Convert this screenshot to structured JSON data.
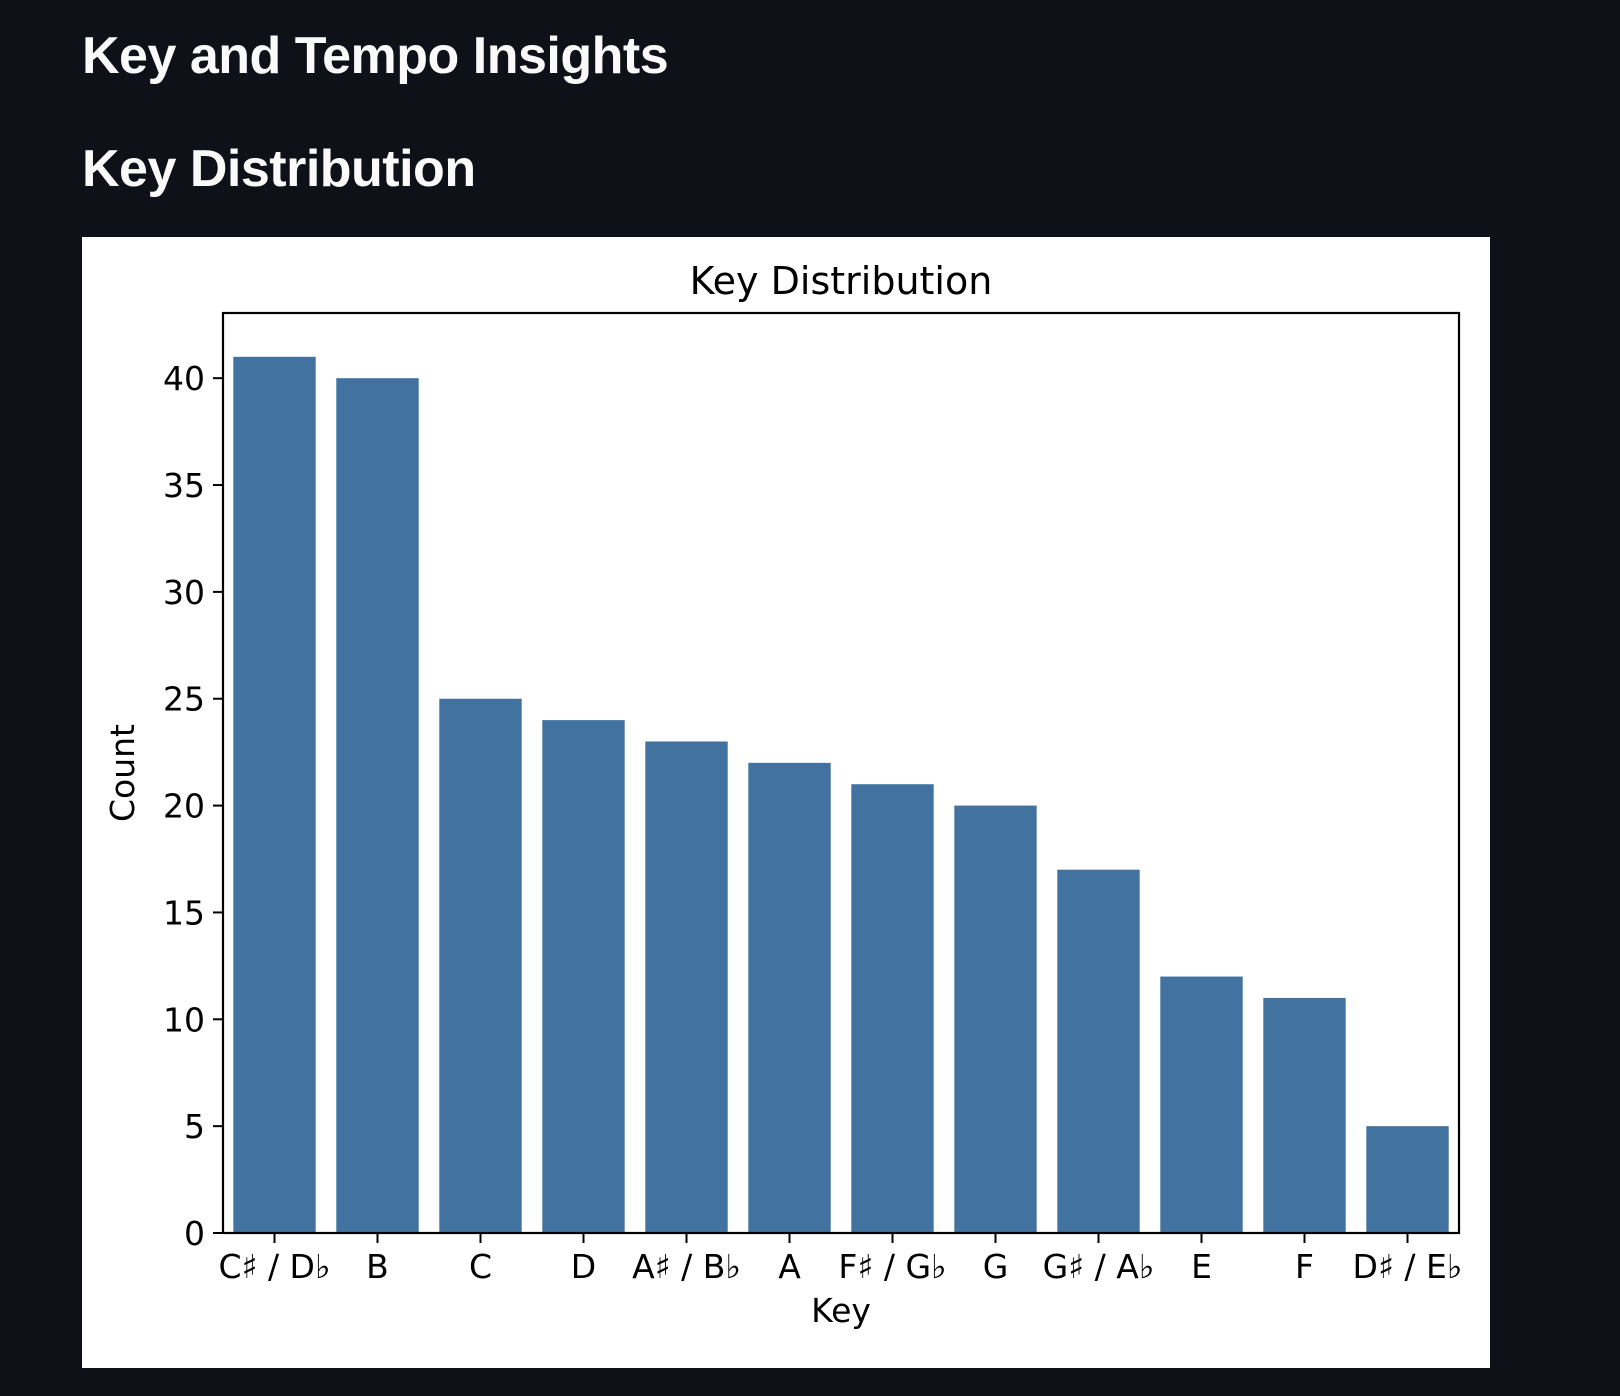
{
  "page": {
    "title": "Key and Tempo Insights",
    "section_heading": "Key Distribution"
  },
  "colors": {
    "background": "#0e1117",
    "bar": "#4273a0"
  },
  "chart_data": {
    "type": "bar",
    "title": "Key Distribution",
    "xlabel": "Key",
    "ylabel": "Count",
    "categories": [
      "C♯ / D♭",
      "B",
      "C",
      "D",
      "A♯ / B♭",
      "A",
      "F♯ / G♭",
      "G",
      "G♯ / A♭",
      "E",
      "F",
      "D♯ / E♭"
    ],
    "values": [
      41,
      40,
      25,
      24,
      23,
      22,
      21,
      20,
      17,
      12,
      11,
      5
    ],
    "ylim": [
      0,
      43.05
    ],
    "yticks": [
      0,
      5,
      10,
      15,
      20,
      25,
      30,
      35,
      40
    ],
    "grid": false,
    "legend": "none"
  }
}
